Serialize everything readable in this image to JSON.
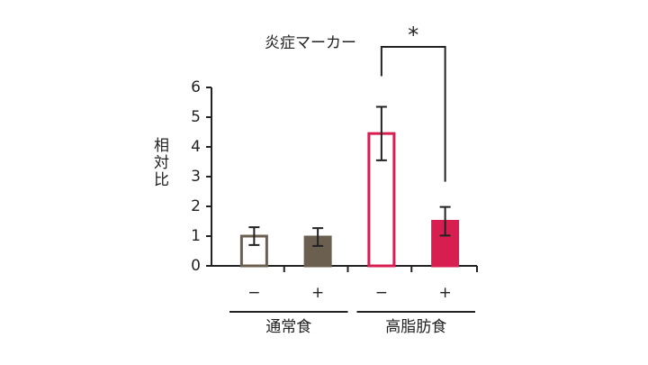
{
  "chart_data": {
    "type": "bar",
    "title": "炎症マーカー",
    "y_label": "相対比",
    "categories": [
      "−",
      "+",
      "−",
      "+"
    ],
    "groups": [
      "通常食",
      "高脂肪食"
    ],
    "values": [
      1.0,
      0.97,
      4.45,
      1.5
    ],
    "errors": [
      0.3,
      0.3,
      0.9,
      0.48
    ],
    "colors": [
      "#6b5f50",
      "#6b5f50",
      "#d81e50",
      "#d81e50"
    ],
    "hollow": [
      true,
      false,
      true,
      false
    ],
    "significance_label": "*",
    "ylim": [
      0,
      6
    ],
    "yticks": [
      0,
      1,
      2,
      3,
      4,
      5,
      6
    ],
    "grid": false
  }
}
